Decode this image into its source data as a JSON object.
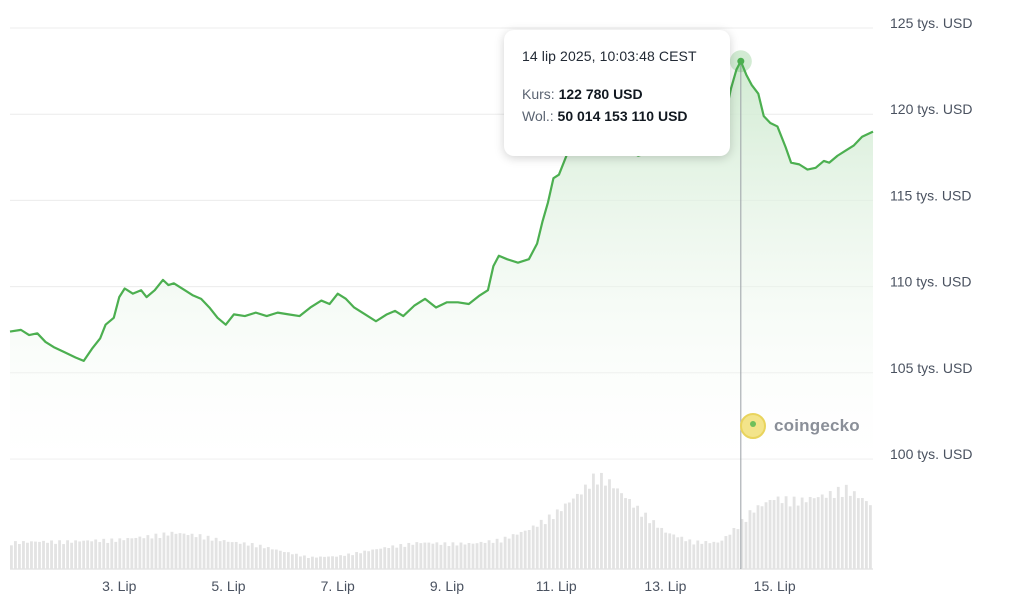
{
  "colors": {
    "line": "#4caf50",
    "area_top": "#cfead0",
    "volume": "#e3e3e3",
    "grid": "#ececec",
    "cursor": "#9aa0a6"
  },
  "tooltip": {
    "date": "14 lip 2025, 10:03:48 CEST",
    "price_label": "Kurs:",
    "price_value": "122 780 USD",
    "volume_label": "Wol.:",
    "volume_value": "50 014 153 110 USD"
  },
  "watermark": "coingecko",
  "chart_data": {
    "type": "area",
    "title": "",
    "xlabel": "",
    "ylabel": "",
    "ylim": [
      100000,
      125000
    ],
    "y_ticks": [
      {
        "value": 125000,
        "label": "125 tys. USD"
      },
      {
        "value": 120000,
        "label": "120 tys. USD"
      },
      {
        "value": 115000,
        "label": "115 tys. USD"
      },
      {
        "value": 110000,
        "label": "110 tys. USD"
      },
      {
        "value": 105000,
        "label": "105 tys. USD"
      },
      {
        "value": 100000,
        "label": "100 tys. USD"
      }
    ],
    "x_range_days": [
      1.0,
      16.8
    ],
    "x_ticks": [
      {
        "day": 3,
        "label": "3. Lip"
      },
      {
        "day": 5,
        "label": "5. Lip"
      },
      {
        "day": 7,
        "label": "7. Lip"
      },
      {
        "day": 9,
        "label": "9. Lip"
      },
      {
        "day": 11,
        "label": "11. Lip"
      },
      {
        "day": 13,
        "label": "13. Lip"
      },
      {
        "day": 15,
        "label": "15. Lip"
      }
    ],
    "grid": true,
    "highlight": {
      "day": 14.38,
      "price": 122780
    },
    "series": [
      {
        "name": "Kurs",
        "points": [
          [
            1.0,
            107100
          ],
          [
            1.2,
            107200
          ],
          [
            1.35,
            106900
          ],
          [
            1.5,
            107000
          ],
          [
            1.65,
            106500
          ],
          [
            1.8,
            106200
          ],
          [
            2.0,
            105900
          ],
          [
            2.2,
            105600
          ],
          [
            2.35,
            105400
          ],
          [
            2.5,
            106100
          ],
          [
            2.65,
            106700
          ],
          [
            2.75,
            107500
          ],
          [
            2.9,
            107900
          ],
          [
            3.0,
            109100
          ],
          [
            3.1,
            109600
          ],
          [
            3.25,
            109300
          ],
          [
            3.4,
            109500
          ],
          [
            3.5,
            109100
          ],
          [
            3.65,
            109500
          ],
          [
            3.8,
            110100
          ],
          [
            3.9,
            109800
          ],
          [
            4.0,
            109900
          ],
          [
            4.2,
            109500
          ],
          [
            4.35,
            109200
          ],
          [
            4.5,
            109000
          ],
          [
            4.65,
            108500
          ],
          [
            4.8,
            107900
          ],
          [
            4.95,
            107500
          ],
          [
            5.1,
            108100
          ],
          [
            5.3,
            108000
          ],
          [
            5.5,
            108200
          ],
          [
            5.7,
            108000
          ],
          [
            5.9,
            108200
          ],
          [
            6.1,
            108100
          ],
          [
            6.3,
            108000
          ],
          [
            6.5,
            108500
          ],
          [
            6.7,
            108900
          ],
          [
            6.85,
            108700
          ],
          [
            7.0,
            109300
          ],
          [
            7.15,
            109000
          ],
          [
            7.3,
            108500
          ],
          [
            7.5,
            108100
          ],
          [
            7.7,
            107700
          ],
          [
            7.9,
            108100
          ],
          [
            8.05,
            108300
          ],
          [
            8.2,
            108000
          ],
          [
            8.4,
            108600
          ],
          [
            8.6,
            109000
          ],
          [
            8.8,
            108500
          ],
          [
            9.0,
            108800
          ],
          [
            9.2,
            108800
          ],
          [
            9.4,
            108700
          ],
          [
            9.6,
            109200
          ],
          [
            9.75,
            109500
          ],
          [
            9.85,
            110900
          ],
          [
            9.95,
            111500
          ],
          [
            10.1,
            111300
          ],
          [
            10.3,
            111100
          ],
          [
            10.5,
            111300
          ],
          [
            10.65,
            112200
          ],
          [
            10.75,
            113500
          ],
          [
            10.85,
            114600
          ],
          [
            10.95,
            116000
          ],
          [
            11.05,
            116200
          ],
          [
            11.2,
            117400
          ],
          [
            11.35,
            117800
          ],
          [
            11.5,
            117900
          ],
          [
            11.7,
            117400
          ],
          [
            11.9,
            117600
          ],
          [
            12.1,
            117800
          ],
          [
            12.3,
            117700
          ],
          [
            12.5,
            117300
          ],
          [
            12.7,
            117500
          ],
          [
            12.9,
            117600
          ],
          [
            13.1,
            117800
          ],
          [
            13.3,
            117900
          ],
          [
            13.5,
            117900
          ],
          [
            13.7,
            118100
          ],
          [
            13.85,
            118300
          ],
          [
            14.0,
            118300
          ],
          [
            14.1,
            119700
          ],
          [
            14.2,
            121200
          ],
          [
            14.3,
            122300
          ],
          [
            14.38,
            122780
          ],
          [
            14.48,
            122000
          ],
          [
            14.58,
            121400
          ],
          [
            14.7,
            120900
          ],
          [
            14.8,
            119600
          ],
          [
            14.92,
            119200
          ],
          [
            15.05,
            119000
          ],
          [
            15.2,
            117800
          ],
          [
            15.3,
            116900
          ],
          [
            15.45,
            116800
          ],
          [
            15.6,
            116500
          ],
          [
            15.75,
            116600
          ],
          [
            15.9,
            117000
          ],
          [
            16.0,
            116900
          ],
          [
            16.15,
            117300
          ],
          [
            16.3,
            117600
          ],
          [
            16.45,
            117900
          ],
          [
            16.6,
            118400
          ],
          [
            16.8,
            118700
          ]
        ]
      },
      {
        "name": "Wol.",
        "points": [
          [
            1.0,
            0.27
          ],
          [
            1.5,
            0.28
          ],
          [
            2.0,
            0.28
          ],
          [
            2.5,
            0.29
          ],
          [
            3.0,
            0.3
          ],
          [
            3.5,
            0.33
          ],
          [
            4.0,
            0.37
          ],
          [
            4.5,
            0.34
          ],
          [
            5.0,
            0.28
          ],
          [
            5.5,
            0.25
          ],
          [
            6.0,
            0.18
          ],
          [
            6.5,
            0.12
          ],
          [
            7.0,
            0.13
          ],
          [
            7.5,
            0.18
          ],
          [
            8.0,
            0.23
          ],
          [
            8.5,
            0.27
          ],
          [
            9.0,
            0.26
          ],
          [
            9.5,
            0.26
          ],
          [
            10.0,
            0.3
          ],
          [
            10.5,
            0.4
          ],
          [
            11.0,
            0.57
          ],
          [
            11.5,
            0.8
          ],
          [
            11.75,
            0.97
          ],
          [
            12.0,
            0.88
          ],
          [
            12.5,
            0.62
          ],
          [
            13.0,
            0.38
          ],
          [
            13.5,
            0.28
          ],
          [
            14.0,
            0.27
          ],
          [
            14.3,
            0.42
          ],
          [
            14.6,
            0.6
          ],
          [
            15.0,
            0.72
          ],
          [
            15.5,
            0.7
          ],
          [
            16.0,
            0.76
          ],
          [
            16.3,
            0.83
          ],
          [
            16.8,
            0.65
          ]
        ]
      }
    ]
  }
}
